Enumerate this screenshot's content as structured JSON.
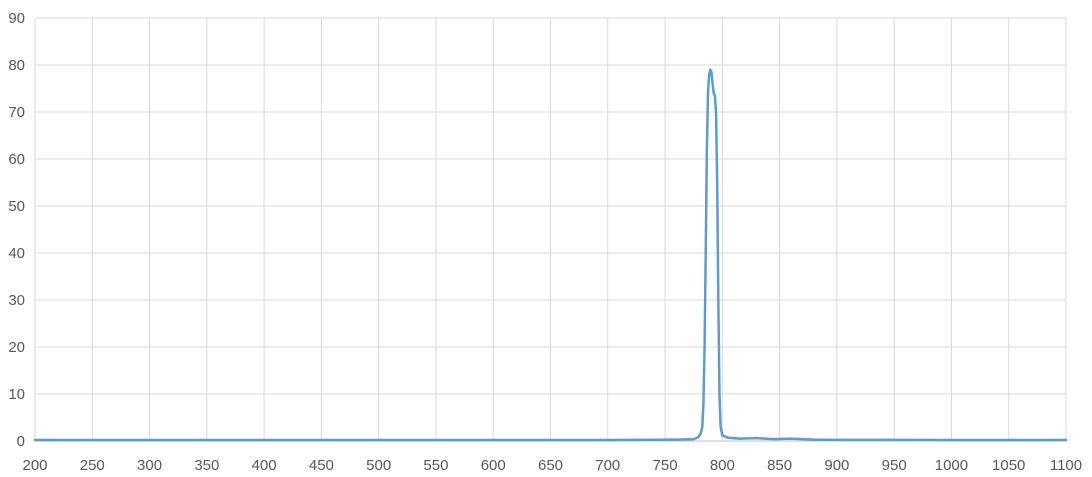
{
  "chart_data": {
    "type": "line",
    "title": "",
    "xlabel": "",
    "ylabel": "",
    "xlim": [
      200,
      1100
    ],
    "ylim": [
      0,
      90
    ],
    "x_ticks": [
      200,
      250,
      300,
      350,
      400,
      450,
      500,
      550,
      600,
      650,
      700,
      750,
      800,
      850,
      900,
      950,
      1000,
      1050,
      1100
    ],
    "y_ticks": [
      0,
      10,
      20,
      30,
      40,
      50,
      60,
      70,
      80,
      90
    ],
    "grid": true,
    "legend": "none",
    "colors": {
      "series": "#5b9bd5",
      "grid": "#d9d9d9",
      "axis": "#bfbfbf",
      "text": "#595959"
    },
    "series": [
      {
        "color": "#5b9bd5",
        "points": [
          [
            200,
            0.2
          ],
          [
            300,
            0.2
          ],
          [
            400,
            0.2
          ],
          [
            500,
            0.2
          ],
          [
            600,
            0.2
          ],
          [
            700,
            0.2
          ],
          [
            760,
            0.3
          ],
          [
            775,
            0.4
          ],
          [
            779,
            0.8
          ],
          [
            781,
            1.5
          ],
          [
            782.5,
            3
          ],
          [
            783.5,
            8
          ],
          [
            784.5,
            20
          ],
          [
            785.5,
            40
          ],
          [
            786.5,
            62
          ],
          [
            787.5,
            74
          ],
          [
            788.5,
            78
          ],
          [
            789.5,
            79
          ],
          [
            790.5,
            78.5
          ],
          [
            791.5,
            76
          ],
          [
            792.5,
            74
          ],
          [
            793.5,
            73.5
          ],
          [
            794.5,
            70
          ],
          [
            795.5,
            55
          ],
          [
            796.5,
            30
          ],
          [
            797.5,
            10
          ],
          [
            798.5,
            3
          ],
          [
            800,
            1.2
          ],
          [
            805,
            0.7
          ],
          [
            815,
            0.5
          ],
          [
            830,
            0.6
          ],
          [
            845,
            0.4
          ],
          [
            860,
            0.5
          ],
          [
            880,
            0.3
          ],
          [
            900,
            0.25
          ],
          [
            1000,
            0.2
          ],
          [
            1100,
            0.2
          ]
        ]
      }
    ]
  }
}
